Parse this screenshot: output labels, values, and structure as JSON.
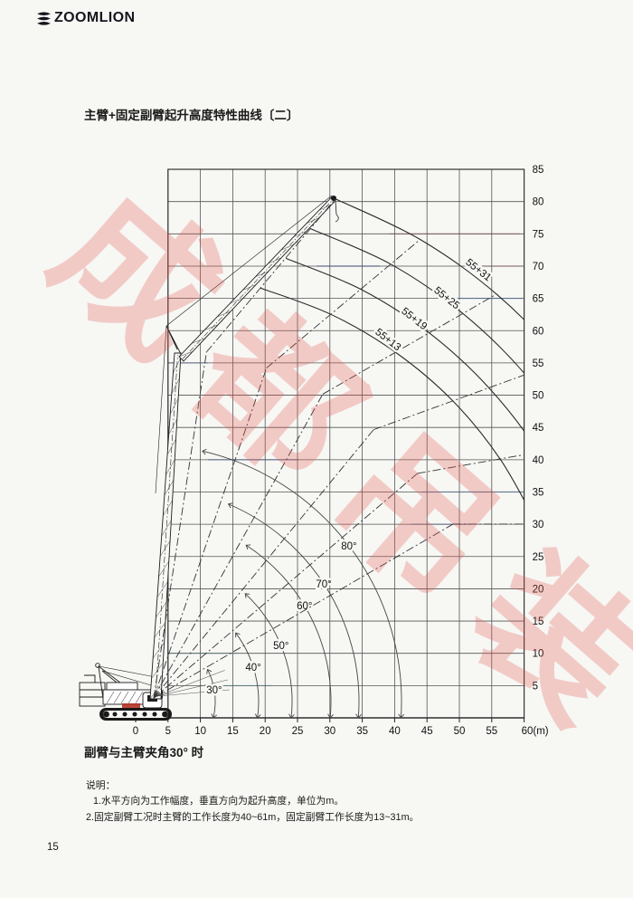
{
  "header": {
    "brand": "ZOOMLION"
  },
  "title": "主臂+固定副臂起升高度特性曲线〔二〕",
  "caption": "副臂与主臂夹角30° 时",
  "notes": {
    "heading": "说明：",
    "items": [
      "1.水平方向为工作幅度，垂直方向为起升高度，单位为m。",
      "2.固定副臂工况时主臂的工作长度为40~61m，固定副臂工作长度为13~31m。"
    ]
  },
  "page_number": "15",
  "watermark": {
    "text": "成都吊装",
    "color": "#e2564e"
  },
  "chart_data": {
    "type": "line",
    "title": "主臂+固定副臂起升高度特性曲线〔二〕",
    "caption": "副臂与主臂夹角30° 时",
    "x_axis": {
      "range": [
        0,
        60
      ],
      "tick_values": [
        0,
        5,
        10,
        15,
        20,
        25,
        30,
        35,
        40,
        45,
        50,
        55,
        60
      ],
      "tick_labels": [
        "0",
        "5",
        "10",
        "15",
        "20",
        "25",
        "30",
        "35",
        "40",
        "45",
        "50",
        "55",
        "60(m)"
      ]
    },
    "y_axis": {
      "range": [
        0,
        85
      ],
      "tick_values": [
        5,
        10,
        15,
        20,
        25,
        30,
        35,
        40,
        45,
        50,
        55,
        60,
        65,
        70,
        75,
        80,
        85
      ],
      "tick_labels": [
        "5",
        "10",
        "15",
        "20",
        "25",
        "30",
        "35",
        "40",
        "45",
        "50",
        "55",
        "60",
        "65",
        "70",
        "75",
        "80",
        "85"
      ]
    },
    "grid": true,
    "boom_length_m": 55,
    "jib_lengths_m": [
      13,
      19,
      25,
      31
    ],
    "jib_offset_deg": 30,
    "boom_angle_lines_deg": [
      30,
      40,
      50,
      60,
      70,
      80
    ],
    "angle_labels": [
      "30°",
      "40°",
      "50°",
      "60°",
      "70°",
      "80°"
    ],
    "curve_labels": [
      "55+13",
      "55+19",
      "55+25",
      "55+31"
    ],
    "series": [
      {
        "name": "55+13",
        "boom_angles_deg": [
          80,
          70,
          60,
          50,
          40,
          30
        ],
        "points_radius_height_m": [
          [
            19.3,
            66.6
          ],
          [
            30.2,
            62.5
          ],
          [
            40.2,
            56.6
          ],
          [
            49.0,
            49.1
          ],
          [
            56.3,
            40.1
          ],
          [
            62.0,
            30.0
          ]
        ]
      },
      {
        "name": "55+19",
        "boom_angles_deg": [
          80,
          70,
          60,
          50,
          40,
          30
        ],
        "points_radius_height_m": [
          [
            23.2,
            71.2
          ],
          [
            34.8,
            66.4
          ],
          [
            45.4,
            59.6
          ],
          [
            54.6,
            51.1
          ],
          [
            62.2,
            41.2
          ],
          [
            68.0,
            30.0
          ]
        ]
      },
      {
        "name": "55+25",
        "boom_angles_deg": [
          80,
          70,
          60,
          50,
          40,
          30
        ],
        "points_radius_height_m": [
          [
            27.0,
            75.8
          ],
          [
            39.4,
            70.3
          ],
          [
            50.6,
            62.6
          ],
          [
            60.2,
            53.2
          ],
          [
            68.1,
            42.2
          ],
          [
            74.0,
            30.0
          ]
        ]
      },
      {
        "name": "55+31",
        "boom_angles_deg": [
          80,
          70,
          60,
          50,
          40,
          30
        ],
        "points_radius_height_m": [
          [
            30.9,
            80.4
          ],
          [
            44.0,
            74.1
          ],
          [
            55.8,
            65.6
          ],
          [
            65.9,
            55.2
          ],
          [
            74.1,
            43.2
          ],
          [
            80.0,
            30.0
          ]
        ]
      }
    ]
  }
}
